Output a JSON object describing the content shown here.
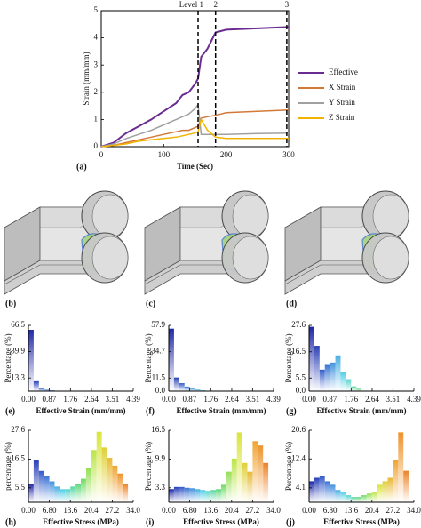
{
  "chart_data": [
    {
      "type": "line",
      "panel_label": "(a)",
      "xlabel": "Time (Sec)",
      "ylabel": "Strain (mm/mm)",
      "x": [
        0,
        20,
        40,
        60,
        80,
        100,
        120,
        130,
        140,
        150,
        155,
        160,
        170,
        183,
        200,
        250,
        300
      ],
      "series": [
        {
          "name": "Effective",
          "color": "#6a2c91",
          "values": [
            0,
            0.15,
            0.5,
            0.75,
            1.0,
            1.3,
            1.6,
            1.9,
            2.0,
            2.3,
            2.5,
            3.3,
            3.6,
            4.2,
            4.3,
            4.35,
            4.4
          ]
        },
        {
          "name": "X Strain",
          "color": "#d2793a",
          "values": [
            0,
            0.05,
            0.15,
            0.25,
            0.35,
            0.45,
            0.55,
            0.6,
            0.6,
            0.7,
            0.75,
            1.05,
            1.1,
            1.15,
            1.25,
            1.3,
            1.35
          ]
        },
        {
          "name": "Y Strain",
          "color": "#a0a0a0",
          "values": [
            0,
            0.1,
            0.3,
            0.45,
            0.6,
            0.8,
            1.0,
            1.1,
            1.2,
            1.4,
            1.55,
            0.45,
            0.45,
            0.45,
            0.45,
            0.48,
            0.5
          ]
        },
        {
          "name": "Z Strain",
          "color": "#f0b400",
          "values": [
            0,
            0.05,
            0.1,
            0.2,
            0.25,
            0.3,
            0.35,
            0.4,
            0.45,
            0.5,
            0.55,
            1.0,
            0.6,
            0.35,
            0.3,
            0.3,
            0.3
          ]
        }
      ],
      "xlim": [
        0,
        300
      ],
      "xticks": [
        0,
        100,
        200,
        300
      ],
      "ylim": [
        0,
        5
      ],
      "yticks": [
        0,
        1,
        2,
        3,
        4,
        5
      ],
      "legend": "right",
      "annotations": [
        {
          "x": 155,
          "label": "Level 1"
        },
        {
          "x": 183,
          "label": "2"
        },
        {
          "x": 297,
          "label": "3"
        }
      ]
    },
    {
      "type": "histogram",
      "panel_label": "(e)",
      "xlabel": "Effective Strain (mm/mm)",
      "ylabel": "Percentage (%)",
      "bins": [
        0,
        0.22,
        0.44,
        0.66,
        0.88,
        1.1,
        1.32,
        1.54,
        1.76,
        1.98,
        2.2
      ],
      "values": [
        62,
        10,
        3,
        1.5,
        0.8,
        0.4,
        0.2,
        0.1,
        0,
        0
      ],
      "xlim": [
        0,
        4.39
      ],
      "xticks": [
        {
          "value": 0,
          "label": "0.00"
        },
        0.87,
        1.76,
        2.64,
        3.51,
        4.39
      ],
      "ylim": [
        0,
        66.5
      ],
      "yticks": [
        13.3,
        39.9,
        66.5
      ],
      "colormap": [
        "#1a1a9c",
        "#3b6fd6",
        "#4fd1e8",
        "#5fd86a",
        "#d8e83a",
        "#f0a030",
        "#e86a20"
      ]
    },
    {
      "type": "histogram",
      "panel_label": "(f)",
      "xlabel": "Effective Strain (mm/mm)",
      "ylabel": "Percentage (%)",
      "bins": [
        0,
        0.22,
        0.44,
        0.66,
        0.88,
        1.1,
        1.32,
        1.54,
        1.76,
        1.98,
        2.2
      ],
      "values": [
        55,
        12,
        7,
        4,
        2.5,
        1.5,
        0.8,
        0.4,
        0.2,
        0.1
      ],
      "xlim": [
        0,
        4.39
      ],
      "xticks": [
        {
          "value": 0,
          "label": "0.00"
        },
        0.87,
        1.76,
        2.64,
        3.51,
        4.39
      ],
      "ylim": [
        0,
        57.9
      ],
      "yticks": [
        {
          "value": 0,
          "label": "0.0"
        },
        11.5,
        34.7,
        57.9
      ],
      "colormap": [
        "#1a1a9c",
        "#3b6fd6",
        "#4fd1e8",
        "#5fd86a",
        "#d8e83a",
        "#f0a030",
        "#e86a20"
      ]
    },
    {
      "type": "histogram",
      "panel_label": "(g)",
      "xlabel": "Effective Strain (mm/mm)",
      "ylabel": "Percentage (%)",
      "bins": [
        0,
        0.22,
        0.44,
        0.66,
        0.88,
        1.1,
        1.32,
        1.54,
        1.76,
        1.98,
        2.2
      ],
      "values": [
        27,
        19,
        9,
        11,
        12,
        15,
        8,
        5,
        2,
        1
      ],
      "xlim": [
        0,
        4.39
      ],
      "xticks": [
        {
          "value": 0,
          "label": "0.00"
        },
        0.87,
        1.76,
        2.64,
        3.51,
        4.39
      ],
      "ylim": [
        0,
        27.6
      ],
      "yticks": [
        {
          "value": 0,
          "label": "0.0"
        },
        5.5,
        16.5,
        27.6
      ],
      "colormap": [
        "#1a1a9c",
        "#3b6fd6",
        "#4fd1e8",
        "#5fd86a",
        "#d8e83a",
        "#f0a030",
        "#e86a20"
      ]
    },
    {
      "type": "histogram",
      "panel_label": "(h)",
      "xlabel": "Effective Stress (MPa)",
      "ylabel": "percentage (%)",
      "bins": [
        0,
        1.7,
        3.4,
        5.1,
        6.8,
        8.5,
        10.2,
        11.9,
        13.6,
        15.3,
        17,
        18.7,
        20.4,
        22.1,
        23.8,
        25.5,
        27.2,
        28.9,
        30.6,
        32.3,
        34
      ],
      "values": [
        7,
        16,
        12,
        10,
        8,
        6,
        5,
        5,
        6,
        7,
        9,
        13,
        20,
        27,
        21,
        17,
        14,
        11,
        7,
        0
      ],
      "xlim": [
        0,
        34
      ],
      "xticks": [
        {
          "value": 0,
          "label": "0.00"
        },
        {
          "value": 6.8,
          "label": "6.80"
        },
        13.6,
        20.4,
        27.2,
        {
          "value": 34,
          "label": "34.0"
        }
      ],
      "ylim": [
        0,
        27.6
      ],
      "yticks": [
        5.5,
        16.5,
        27.6
      ],
      "colormap": [
        "#1a1a9c",
        "#3b6fd6",
        "#4fd1e8",
        "#5fd86a",
        "#d8e83a",
        "#f0a030",
        "#e86a20"
      ]
    },
    {
      "type": "histogram",
      "panel_label": "(i)",
      "xlabel": "Effective Stress (MPa)",
      "ylabel": "Percentage (%)",
      "bins": [
        0,
        1.7,
        3.4,
        5.1,
        6.8,
        8.5,
        10.2,
        11.9,
        13.6,
        15.3,
        17,
        18.7,
        20.4,
        22.1,
        23.8,
        25.5,
        27.2,
        28.9,
        30.6,
        32.3,
        34
      ],
      "values": [
        3,
        3.5,
        3.5,
        3.3,
        3.2,
        3,
        2.8,
        2.6,
        2.8,
        3,
        4,
        7,
        10,
        16,
        9,
        7,
        14,
        13,
        9,
        0
      ],
      "xlim": [
        0,
        34
      ],
      "xticks": [
        {
          "value": 0,
          "label": "0.00"
        },
        {
          "value": 6.8,
          "label": "6.80"
        },
        13.6,
        20.4,
        27.2,
        {
          "value": 34,
          "label": "34.0"
        }
      ],
      "ylim": [
        0,
        16.5
      ],
      "yticks": [
        3.3,
        9.9,
        16.5
      ],
      "colormap": [
        "#1a1a9c",
        "#3b6fd6",
        "#4fd1e8",
        "#5fd86a",
        "#d8e83a",
        "#f0a030",
        "#e86a20"
      ]
    },
    {
      "type": "histogram",
      "panel_label": "(j)",
      "xlabel": "Effective Stress (MPa)",
      "ylabel": "Percentage (%)",
      "bins": [
        0,
        1.7,
        3.4,
        5.1,
        6.8,
        8.5,
        10.2,
        11.9,
        13.6,
        15.3,
        17,
        18.7,
        20.4,
        22.1,
        23.8,
        25.5,
        27.2,
        28.9,
        30.6,
        32.3,
        34
      ],
      "values": [
        6,
        7,
        7.5,
        6,
        5,
        3.5,
        3,
        2,
        1.5,
        1.5,
        2,
        2.5,
        3,
        5,
        6,
        7,
        12,
        20,
        9,
        0
      ],
      "xlim": [
        0,
        34
      ],
      "xticks": [
        {
          "value": 0,
          "label": "0.00"
        },
        {
          "value": 6.8,
          "label": "6.80"
        },
        13.6,
        20.4,
        27.2,
        {
          "value": 34,
          "label": "34.0"
        }
      ],
      "ylim": [
        0,
        20.6
      ],
      "yticks": [
        4.1,
        12.4,
        20.6
      ],
      "colormap": [
        "#1a1a9c",
        "#3b6fd6",
        "#4fd1e8",
        "#5fd86a",
        "#d8e83a",
        "#f0a030",
        "#e86a20"
      ]
    }
  ],
  "image_panels": [
    "(b)",
    "(c)",
    "(d)"
  ]
}
